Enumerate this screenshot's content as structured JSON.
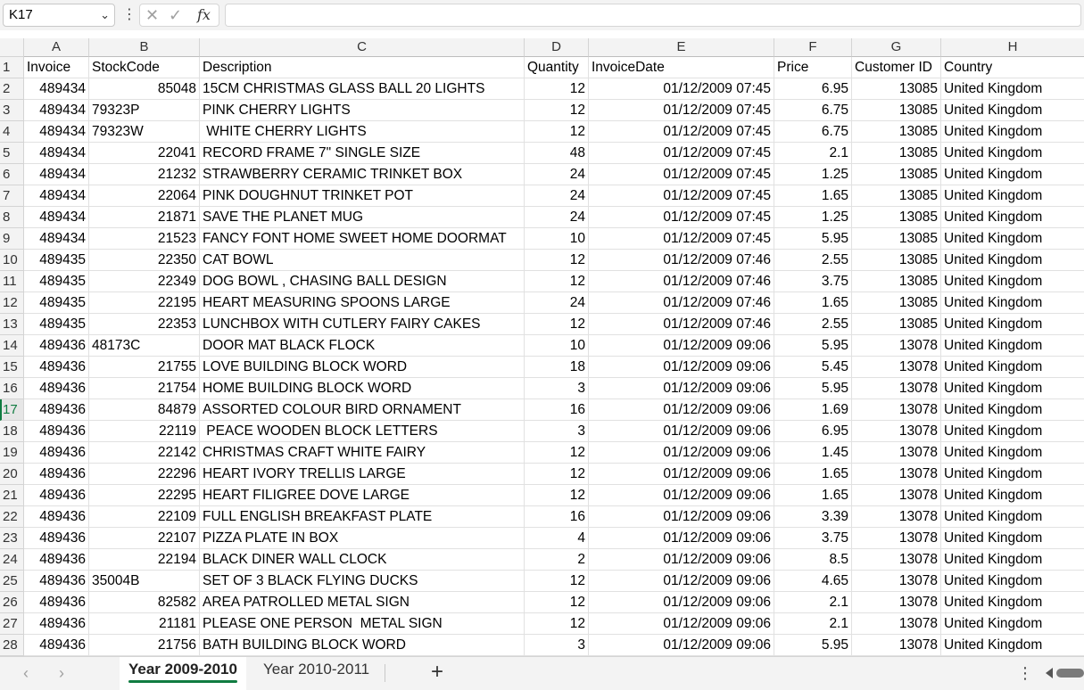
{
  "formula_bar": {
    "name_box": "K17",
    "formula": ""
  },
  "columns": [
    "A",
    "B",
    "C",
    "D",
    "E",
    "F",
    "G",
    "H"
  ],
  "header_row": {
    "row_num": "1",
    "cells": [
      "Invoice",
      "StockCode",
      "Description",
      "Quantity",
      "InvoiceDate",
      "Price",
      "Customer ID",
      "Country"
    ]
  },
  "rows": [
    {
      "n": "2",
      "a": "489434",
      "b": "85048",
      "c": "15CM CHRISTMAS GLASS BALL 20 LIGHTS",
      "d": "12",
      "e": "01/12/2009 07:45",
      "f": "6.95",
      "g": "13085",
      "h": "United Kingdom"
    },
    {
      "n": "3",
      "a": "489434",
      "b": "79323P",
      "c": "PINK CHERRY LIGHTS",
      "d": "12",
      "e": "01/12/2009 07:45",
      "f": "6.75",
      "g": "13085",
      "h": "United Kingdom"
    },
    {
      "n": "4",
      "a": "489434",
      "b": "79323W",
      "c": " WHITE CHERRY LIGHTS",
      "d": "12",
      "e": "01/12/2009 07:45",
      "f": "6.75",
      "g": "13085",
      "h": "United Kingdom"
    },
    {
      "n": "5",
      "a": "489434",
      "b": "22041",
      "c": "RECORD FRAME 7\" SINGLE SIZE",
      "d": "48",
      "e": "01/12/2009 07:45",
      "f": "2.1",
      "g": "13085",
      "h": "United Kingdom"
    },
    {
      "n": "6",
      "a": "489434",
      "b": "21232",
      "c": "STRAWBERRY CERAMIC TRINKET BOX",
      "d": "24",
      "e": "01/12/2009 07:45",
      "f": "1.25",
      "g": "13085",
      "h": "United Kingdom"
    },
    {
      "n": "7",
      "a": "489434",
      "b": "22064",
      "c": "PINK DOUGHNUT TRINKET POT",
      "d": "24",
      "e": "01/12/2009 07:45",
      "f": "1.65",
      "g": "13085",
      "h": "United Kingdom"
    },
    {
      "n": "8",
      "a": "489434",
      "b": "21871",
      "c": "SAVE THE PLANET MUG",
      "d": "24",
      "e": "01/12/2009 07:45",
      "f": "1.25",
      "g": "13085",
      "h": "United Kingdom"
    },
    {
      "n": "9",
      "a": "489434",
      "b": "21523",
      "c": "FANCY FONT HOME SWEET HOME DOORMAT",
      "d": "10",
      "e": "01/12/2009 07:45",
      "f": "5.95",
      "g": "13085",
      "h": "United Kingdom"
    },
    {
      "n": "10",
      "a": "489435",
      "b": "22350",
      "c": "CAT BOWL",
      "d": "12",
      "e": "01/12/2009 07:46",
      "f": "2.55",
      "g": "13085",
      "h": "United Kingdom"
    },
    {
      "n": "11",
      "a": "489435",
      "b": "22349",
      "c": "DOG BOWL , CHASING BALL DESIGN",
      "d": "12",
      "e": "01/12/2009 07:46",
      "f": "3.75",
      "g": "13085",
      "h": "United Kingdom"
    },
    {
      "n": "12",
      "a": "489435",
      "b": "22195",
      "c": "HEART MEASURING SPOONS LARGE",
      "d": "24",
      "e": "01/12/2009 07:46",
      "f": "1.65",
      "g": "13085",
      "h": "United Kingdom"
    },
    {
      "n": "13",
      "a": "489435",
      "b": "22353",
      "c": "LUNCHBOX WITH CUTLERY FAIRY CAKES",
      "d": "12",
      "e": "01/12/2009 07:46",
      "f": "2.55",
      "g": "13085",
      "h": "United Kingdom"
    },
    {
      "n": "14",
      "a": "489436",
      "b": "48173C",
      "c": "DOOR MAT BLACK FLOCK",
      "d": "10",
      "e": "01/12/2009 09:06",
      "f": "5.95",
      "g": "13078",
      "h": "United Kingdom"
    },
    {
      "n": "15",
      "a": "489436",
      "b": "21755",
      "c": "LOVE BUILDING BLOCK WORD",
      "d": "18",
      "e": "01/12/2009 09:06",
      "f": "5.45",
      "g": "13078",
      "h": "United Kingdom"
    },
    {
      "n": "16",
      "a": "489436",
      "b": "21754",
      "c": "HOME BUILDING BLOCK WORD",
      "d": "3",
      "e": "01/12/2009 09:06",
      "f": "5.95",
      "g": "13078",
      "h": "United Kingdom"
    },
    {
      "n": "17",
      "a": "489436",
      "b": "84879",
      "c": "ASSORTED COLOUR BIRD ORNAMENT",
      "d": "16",
      "e": "01/12/2009 09:06",
      "f": "1.69",
      "g": "13078",
      "h": "United Kingdom"
    },
    {
      "n": "18",
      "a": "489436",
      "b": "22119",
      "c": " PEACE WOODEN BLOCK LETTERS",
      "d": "3",
      "e": "01/12/2009 09:06",
      "f": "6.95",
      "g": "13078",
      "h": "United Kingdom"
    },
    {
      "n": "19",
      "a": "489436",
      "b": "22142",
      "c": "CHRISTMAS CRAFT WHITE FAIRY",
      "d": "12",
      "e": "01/12/2009 09:06",
      "f": "1.45",
      "g": "13078",
      "h": "United Kingdom"
    },
    {
      "n": "20",
      "a": "489436",
      "b": "22296",
      "c": "HEART IVORY TRELLIS LARGE",
      "d": "12",
      "e": "01/12/2009 09:06",
      "f": "1.65",
      "g": "13078",
      "h": "United Kingdom"
    },
    {
      "n": "21",
      "a": "489436",
      "b": "22295",
      "c": "HEART FILIGREE DOVE LARGE",
      "d": "12",
      "e": "01/12/2009 09:06",
      "f": "1.65",
      "g": "13078",
      "h": "United Kingdom"
    },
    {
      "n": "22",
      "a": "489436",
      "b": "22109",
      "c": "FULL ENGLISH BREAKFAST PLATE",
      "d": "16",
      "e": "01/12/2009 09:06",
      "f": "3.39",
      "g": "13078",
      "h": "United Kingdom"
    },
    {
      "n": "23",
      "a": "489436",
      "b": "22107",
      "c": "PIZZA PLATE IN BOX",
      "d": "4",
      "e": "01/12/2009 09:06",
      "f": "3.75",
      "g": "13078",
      "h": "United Kingdom"
    },
    {
      "n": "24",
      "a": "489436",
      "b": "22194",
      "c": "BLACK DINER WALL CLOCK",
      "d": "2",
      "e": "01/12/2009 09:06",
      "f": "8.5",
      "g": "13078",
      "h": "United Kingdom"
    },
    {
      "n": "25",
      "a": "489436",
      "b": "35004B",
      "c": "SET OF 3 BLACK FLYING DUCKS",
      "d": "12",
      "e": "01/12/2009 09:06",
      "f": "4.65",
      "g": "13078",
      "h": "United Kingdom"
    },
    {
      "n": "26",
      "a": "489436",
      "b": "82582",
      "c": "AREA PATROLLED METAL SIGN",
      "d": "12",
      "e": "01/12/2009 09:06",
      "f": "2.1",
      "g": "13078",
      "h": "United Kingdom"
    },
    {
      "n": "27",
      "a": "489436",
      "b": "21181",
      "c": "PLEASE ONE PERSON  METAL SIGN",
      "d": "12",
      "e": "01/12/2009 09:06",
      "f": "2.1",
      "g": "13078",
      "h": "United Kingdom"
    },
    {
      "n": "28",
      "a": "489436",
      "b": "21756",
      "c": "BATH BUILDING BLOCK WORD",
      "d": "3",
      "e": "01/12/2009 09:06",
      "f": "5.95",
      "g": "13078",
      "h": "United Kingdom"
    }
  ],
  "active_row": "17",
  "sheet_tabs": {
    "active": "Year 2009-2010",
    "other": "Year 2010-2011",
    "add_symbol": "+"
  },
  "icons": {
    "name_box_dropdown": "chevron-down-icon",
    "cancel": "close-icon",
    "enter": "checkmark-icon",
    "function": "fx-icon"
  },
  "colors": {
    "accent": "#107c41",
    "header_bg": "#f3f3f3",
    "gridline": "#e1e1e1"
  }
}
